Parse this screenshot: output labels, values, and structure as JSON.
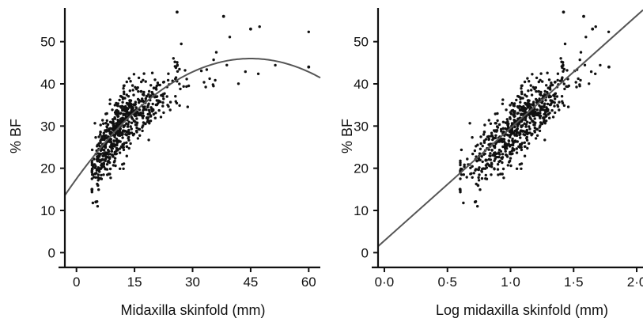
{
  "chart_data": [
    {
      "type": "scatter",
      "xlabel": "Midaxilla skinfold (mm)",
      "ylabel": "% BF",
      "xlim": [
        -3,
        63
      ],
      "ylim": [
        -2,
        58
      ],
      "x_ticks": [
        0,
        15,
        30,
        45,
        60
      ],
      "x_tick_labels": [
        "0",
        "15",
        "30",
        "45",
        "60"
      ],
      "y_ticks": [
        0,
        10,
        20,
        30,
        40,
        50
      ],
      "y_tick_labels": [
        "0",
        "10",
        "20",
        "30",
        "40",
        "50"
      ],
      "fit": {
        "kind": "quadratic",
        "points": [
          [
            -3,
            14
          ],
          [
            0,
            17.5
          ],
          [
            15,
            34.5
          ],
          [
            30,
            43.5
          ],
          [
            45,
            46
          ],
          [
            55,
            45
          ],
          [
            63,
            42
          ]
        ]
      },
      "point_count": 700,
      "x_range_observed": [
        4,
        60
      ],
      "series": [
        {
          "values": [
            [
              4,
              15
            ],
            [
              5,
              12
            ],
            [
              10,
              29
            ],
            [
              15,
              35
            ],
            [
              20,
              39
            ],
            [
              26,
              57
            ],
            [
              38,
              56
            ],
            [
              45,
              53
            ],
            [
              60,
              44
            ]
          ]
        }
      ]
    },
    {
      "type": "scatter",
      "xlabel": "Log midaxilla skinfold (mm)",
      "ylabel": "% BF",
      "xlim": [
        -0.05,
        2.05
      ],
      "ylim": [
        -2,
        58
      ],
      "x_ticks": [
        0,
        0.5,
        1.0,
        1.5,
        2.0
      ],
      "x_tick_labels": [
        "0·0",
        "0·5",
        "1·0",
        "1·5",
        "2·0"
      ],
      "y_ticks": [
        0,
        10,
        20,
        30,
        40,
        50
      ],
      "y_tick_labels": [
        "0",
        "10",
        "20",
        "30",
        "40",
        "50"
      ],
      "fit": {
        "kind": "linear",
        "points": [
          [
            -0.05,
            1.5
          ],
          [
            2.05,
            57.5
          ]
        ]
      },
      "point_count": 700,
      "x_range_observed": [
        0.6,
        1.8
      ],
      "series": [
        {
          "values": [
            [
              0.6,
              15
            ],
            [
              0.72,
              12
            ],
            [
              1.0,
              29
            ],
            [
              1.18,
              35
            ],
            [
              1.3,
              39
            ],
            [
              1.42,
              57
            ],
            [
              1.58,
              56
            ],
            [
              1.65,
              53
            ],
            [
              1.78,
              44
            ]
          ]
        }
      ]
    }
  ]
}
